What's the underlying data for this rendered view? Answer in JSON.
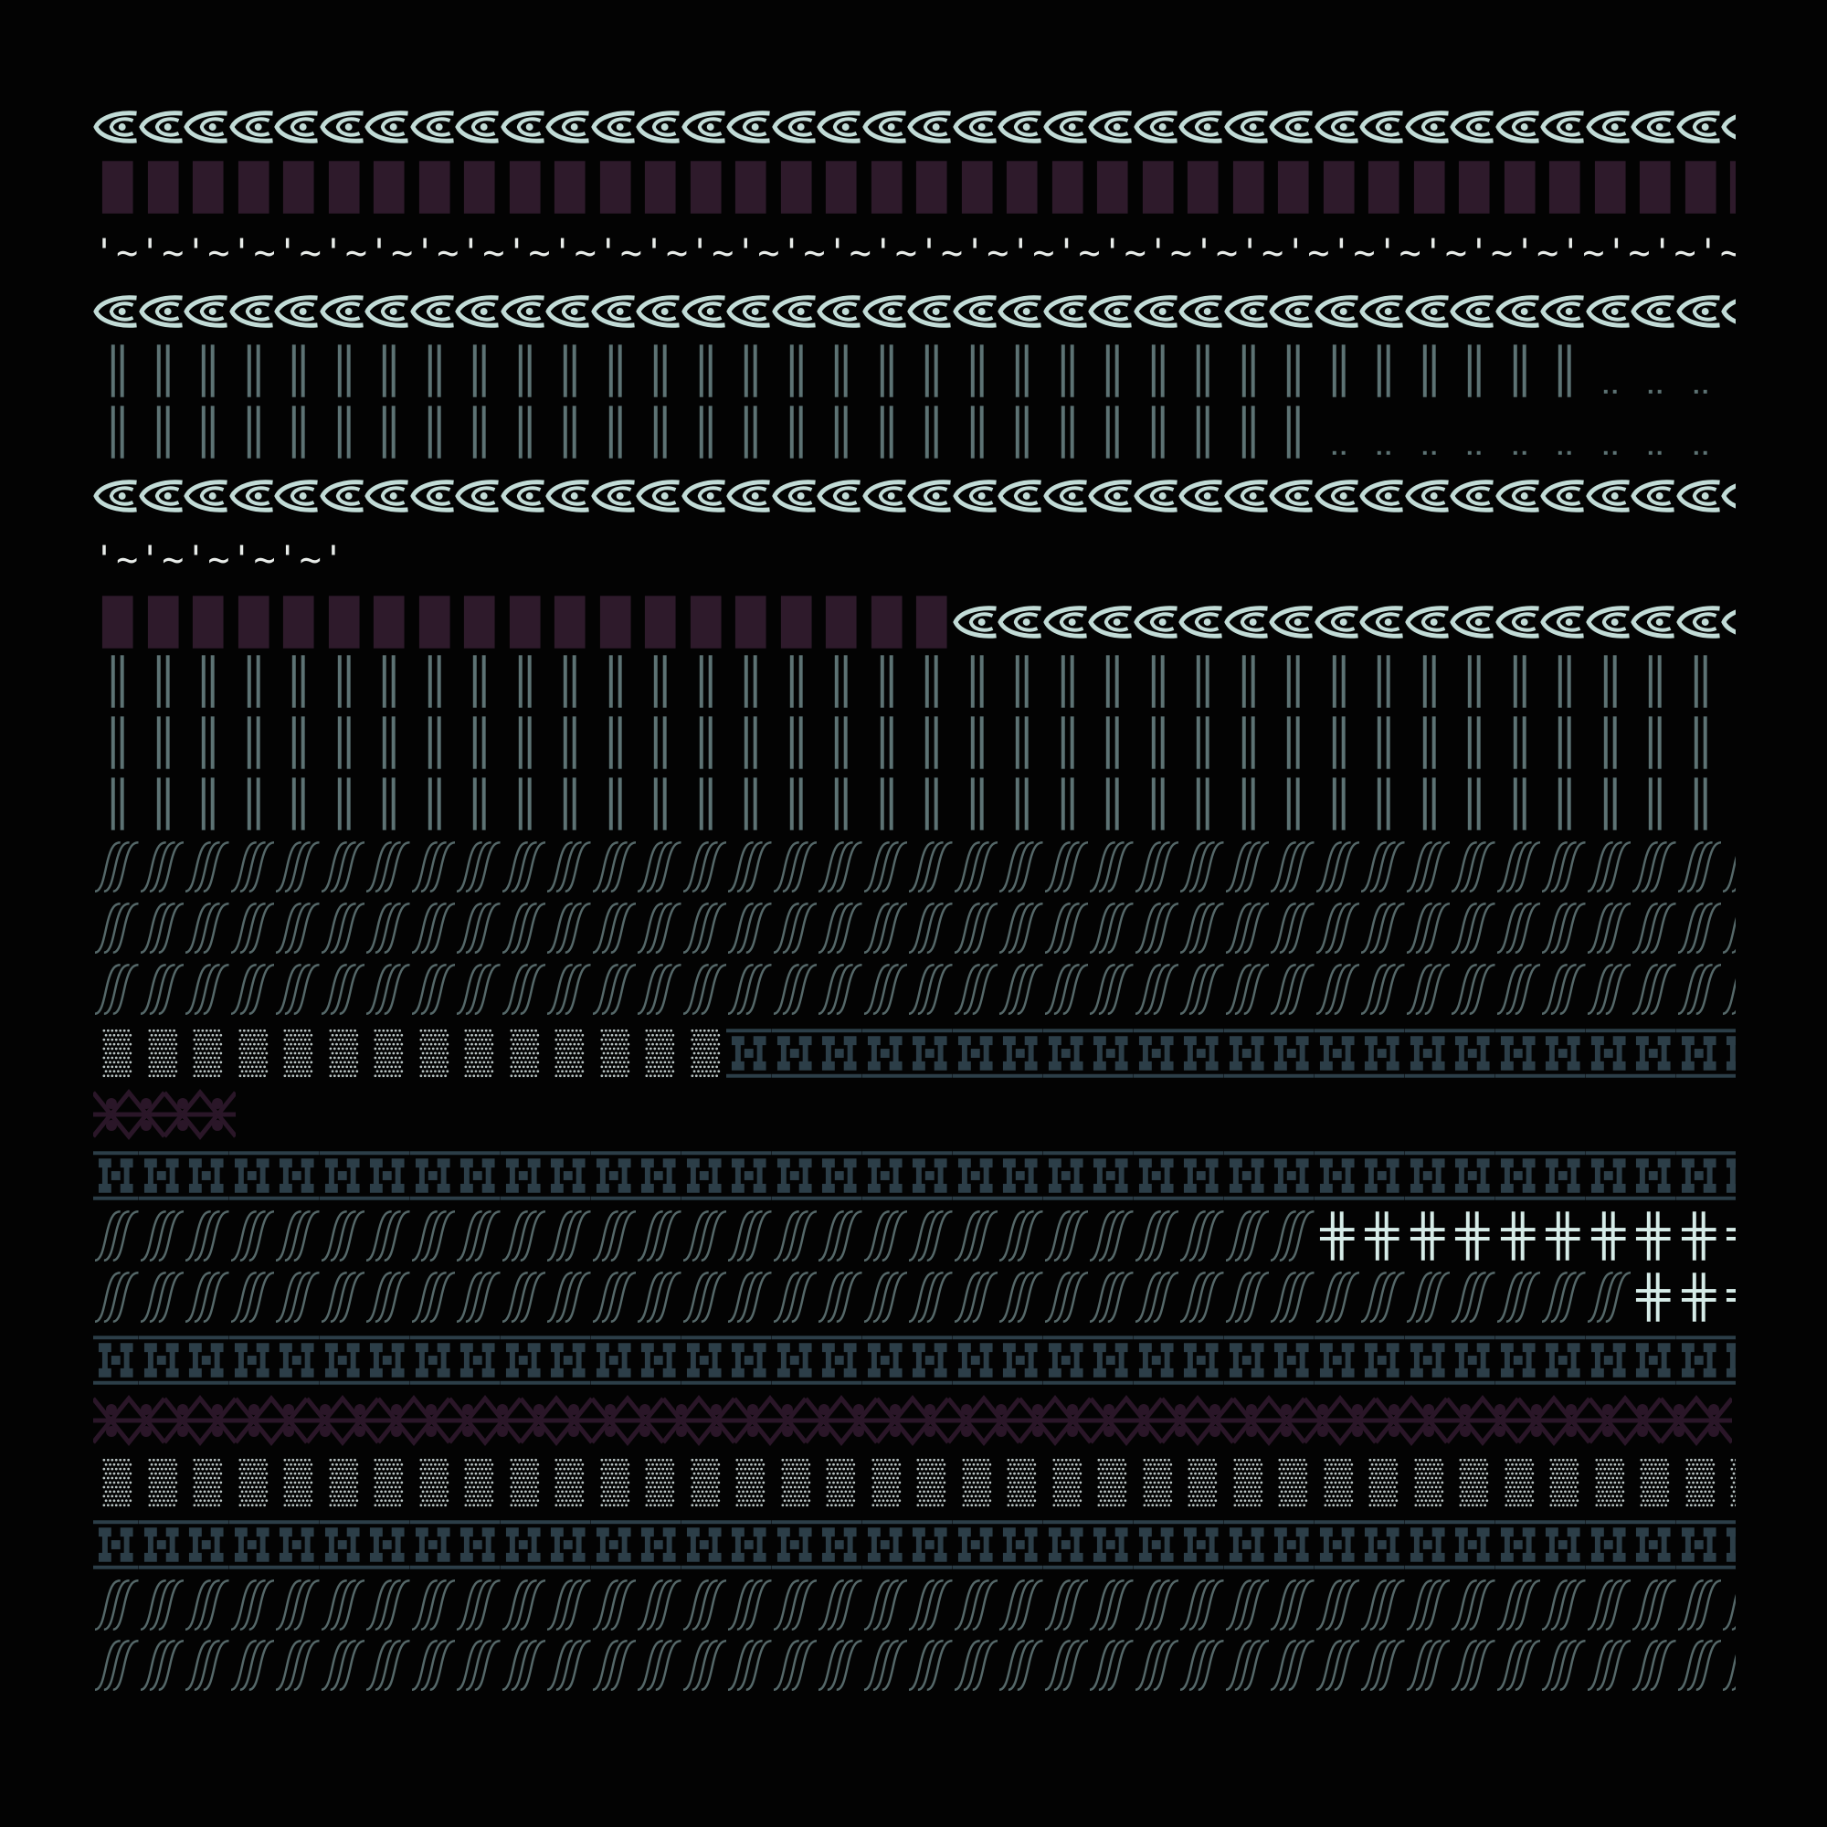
{
  "canvas": {
    "background": "#030303"
  },
  "palette": {
    "wave": "#c2dcd7",
    "stripes": "#5d7374",
    "maroon_block": "#2e1a2b",
    "slash": "#556869",
    "dots_light": "#b9c4c3",
    "frame": "#2c3e48",
    "chevron": "#2a1628",
    "cross": "#d6ece8",
    "text_light": "#e8ece9"
  },
  "text_rows": [
    {
      "text": "'~'~'~'~'~'~'~'~'~'~'~'~'~'~'~'~'~'~'~'~'~'~'~'~'~'~'~'~'~'~'~'~'~'~'~'~'~'~'~'~'~'~"
    },
    {
      "text": "'~'~'~'~'~'"
    }
  ],
  "pattern_rows": [
    {
      "id": "r1",
      "segments": [
        {
          "pattern": "wave-icon",
          "repeat": 37
        }
      ]
    },
    {
      "id": "r2",
      "segments": [
        {
          "pattern": "maroon-block",
          "repeat": 37
        }
      ]
    },
    {
      "id": "r4",
      "segments": [
        {
          "pattern": "wave-icon",
          "repeat": 37
        }
      ]
    },
    {
      "id": "r5",
      "segments": [
        {
          "pattern": "double-bar",
          "repeat": 33
        },
        {
          "pattern": "dots",
          "repeat": 4
        }
      ]
    },
    {
      "id": "r6",
      "segments": [
        {
          "pattern": "double-bar",
          "repeat": 27
        },
        {
          "pattern": "dots",
          "repeat": 10
        }
      ]
    },
    {
      "id": "r7",
      "segments": [
        {
          "pattern": "wave-icon",
          "repeat": 37
        }
      ]
    },
    {
      "id": "r9",
      "segments": [
        {
          "pattern": "maroon-block",
          "repeat": 19
        },
        {
          "pattern": "wave-icon",
          "repeat": 18
        }
      ]
    },
    {
      "id": "r10",
      "segments": [
        {
          "pattern": "double-bar",
          "repeat": 37
        }
      ]
    },
    {
      "id": "r11",
      "segments": [
        {
          "pattern": "double-bar",
          "repeat": 37
        }
      ]
    },
    {
      "id": "r12",
      "segments": [
        {
          "pattern": "double-bar",
          "repeat": 37
        }
      ]
    },
    {
      "id": "r13",
      "segments": [
        {
          "pattern": "slash",
          "repeat": 37
        }
      ]
    },
    {
      "id": "r14",
      "segments": [
        {
          "pattern": "slash",
          "repeat": 37
        }
      ]
    },
    {
      "id": "r15",
      "segments": [
        {
          "pattern": "slash",
          "repeat": 37
        }
      ]
    },
    {
      "id": "r16",
      "segments": [
        {
          "pattern": "dot-block",
          "repeat": 14
        },
        {
          "pattern": "frame",
          "repeat": 23
        }
      ]
    },
    {
      "id": "r17",
      "segments": [
        {
          "pattern": "chevron",
          "repeat": 2
        }
      ]
    },
    {
      "id": "r18",
      "segments": [
        {
          "pattern": "frame",
          "repeat": 37
        }
      ]
    },
    {
      "id": "r19",
      "segments": [
        {
          "pattern": "slash",
          "repeat": 27
        },
        {
          "pattern": "cross",
          "repeat": 10
        }
      ]
    },
    {
      "id": "r20",
      "segments": [
        {
          "pattern": "slash",
          "repeat": 34
        },
        {
          "pattern": "cross",
          "repeat": 3
        }
      ]
    },
    {
      "id": "r21",
      "segments": [
        {
          "pattern": "frame",
          "repeat": 37
        }
      ]
    },
    {
      "id": "r22",
      "segments": [
        {
          "pattern": "chevron",
          "repeat": 23
        }
      ]
    },
    {
      "id": "r23",
      "segments": [
        {
          "pattern": "dot-block",
          "repeat": 37
        }
      ]
    },
    {
      "id": "r24",
      "segments": [
        {
          "pattern": "frame",
          "repeat": 37
        }
      ]
    },
    {
      "id": "r25",
      "segments": [
        {
          "pattern": "slash",
          "repeat": 37
        }
      ]
    },
    {
      "id": "r26",
      "segments": [
        {
          "pattern": "slash",
          "repeat": 37
        }
      ]
    }
  ]
}
